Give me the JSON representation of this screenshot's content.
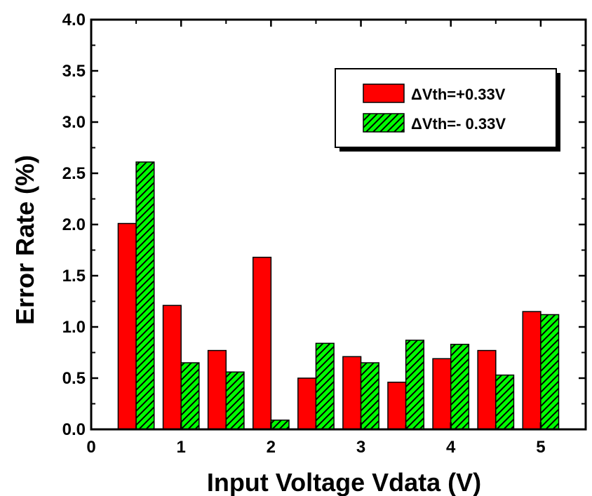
{
  "chart_data": {
    "type": "bar",
    "xlabel": "Input Voltage Vdata (V)",
    "ylabel": "Error Rate (%)",
    "xlim": [
      0,
      5.5
    ],
    "ylim": [
      0,
      4.0
    ],
    "x_ticks": [
      "0",
      "1",
      "2",
      "3",
      "4",
      "5"
    ],
    "y_ticks": [
      "0.0",
      "0.5",
      "1.0",
      "1.5",
      "2.0",
      "2.5",
      "3.0",
      "3.5",
      "4.0"
    ],
    "x": [
      0.5,
      1.0,
      1.5,
      2.0,
      2.5,
      3.0,
      3.5,
      4.0,
      4.5,
      5.0
    ],
    "series": [
      {
        "name": "ΔVth=+0.33V",
        "color": "#ff0000",
        "pattern": "solid",
        "values": [
          2.01,
          1.21,
          0.77,
          1.68,
          0.5,
          0.71,
          0.46,
          0.69,
          0.77,
          1.15
        ]
      },
      {
        "name": "ΔVth=- 0.33V",
        "color": "#00ff00",
        "pattern": "hatched",
        "values": [
          2.61,
          0.65,
          0.56,
          0.09,
          0.84,
          0.65,
          0.87,
          0.83,
          0.53,
          1.12
        ]
      }
    ],
    "legend_position": "top-right",
    "grid": false
  }
}
